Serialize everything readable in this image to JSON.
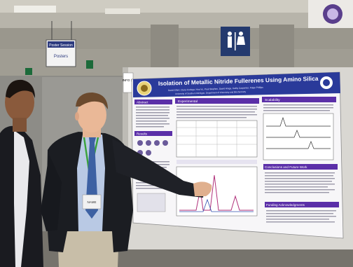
{
  "hall_sign": {
    "title": "Poster Session",
    "text": "Posters"
  },
  "restroom_sign": {
    "icon": "restroom-icon"
  },
  "board_tag": {
    "text": "INFO 11"
  },
  "poster": {
    "title": "Isolation of Metallic Nitride Fullerenes Using Amino Silica",
    "authors": "David Eifert, Ciara Codega, Hoa Vu, Paul Stephen, David Hinga, Kathy Carpenter, Paige Phillips",
    "affiliation": "University of Southern Michigan, Department of Chemistry and Biochemistry",
    "sections": {
      "abstract": "Abstract",
      "experimental": "Experimental",
      "scalability": "Scalability",
      "results": "Results",
      "conclusions": "Conclusions and Future Work",
      "acknowledgments": "Funding Acknowledgments"
    }
  },
  "badge": {
    "text": "NAME"
  },
  "colors": {
    "poster_header": "#2a3a9a",
    "section_header": "#5b2fa8",
    "suit": "#1b1d22",
    "shirt": "#b9c9e4",
    "tie": "#3d61a3",
    "board": "#d9d7d2"
  }
}
